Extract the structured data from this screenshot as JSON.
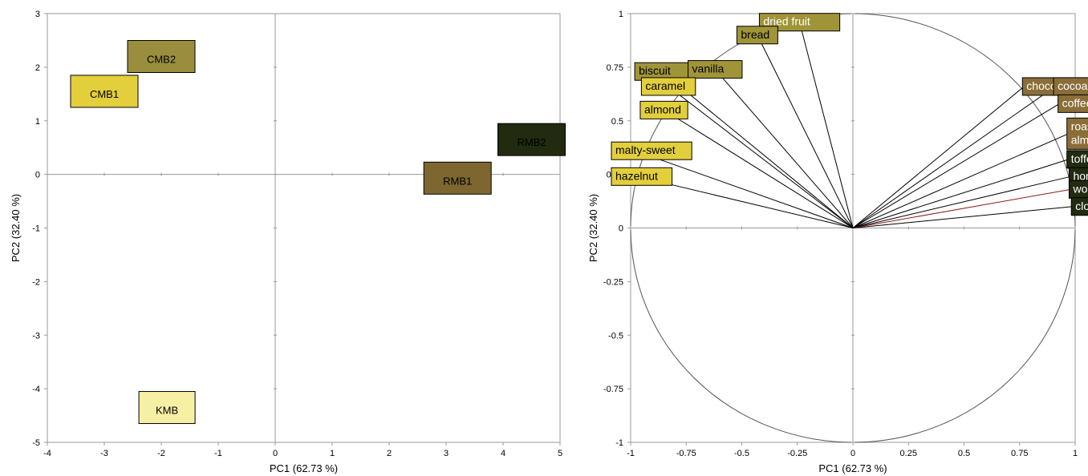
{
  "chart_data": [
    {
      "type": "scatter",
      "xlabel": "PC1 (62.73 %)",
      "ylabel": "PC2 (32.40 %)",
      "xlim": [
        -4,
        5
      ],
      "ylim": [
        -5,
        3
      ],
      "xticks": [
        "-4",
        "-3",
        "-2",
        "-1",
        "0",
        "1",
        "2",
        "3",
        "4",
        "5"
      ],
      "yticks": [
        "-5",
        "-4",
        "-3",
        "-2",
        "-1",
        "0",
        "1",
        "2",
        "3"
      ],
      "grid": false,
      "points": [
        {
          "label": "CMB2",
          "x": -2.0,
          "y": 2.2,
          "color": "#9a8e3e",
          "text_color": "#000000"
        },
        {
          "label": "CMB1",
          "x": -3.0,
          "y": 1.55,
          "color": "#e3cf3c",
          "text_color": "#000000"
        },
        {
          "label": "RMB2",
          "x": 4.5,
          "y": 0.65,
          "color": "#222a10",
          "text_color": "#ffffff"
        },
        {
          "label": "RMB1",
          "x": 3.2,
          "y": -0.07,
          "color": "#7d6630",
          "text_color": "#ffffff"
        },
        {
          "label": "KMB",
          "x": -1.9,
          "y": -4.35,
          "color": "#f6f0a4",
          "text_color": "#000000"
        }
      ]
    },
    {
      "type": "scatter",
      "subtype": "correlation-circle",
      "xlabel": "PC1 (62.73 %)",
      "ylabel": "PC2 (32.40 %)",
      "xlim": [
        -1,
        1
      ],
      "ylim": [
        -1,
        1
      ],
      "xticks": [
        "-1",
        "-0.75",
        "-0.5",
        "-0.25",
        "0",
        "0.25",
        "0.5",
        "0.75",
        "1"
      ],
      "yticks": [
        "-1",
        "-0.75",
        "-0.5",
        "-0.25",
        "0",
        "0.25",
        "0.5",
        "0.75",
        "1"
      ],
      "grid": false,
      "variables": [
        {
          "label": "dried fruit",
          "x": -0.24,
          "y": 0.96,
          "color": "#a09438",
          "text_color": "#ffffff"
        },
        {
          "label": "bread",
          "x": -0.43,
          "y": 0.9,
          "color": "#a09438",
          "text_color": "#000000"
        },
        {
          "label": "biscuit",
          "x": -0.86,
          "y": 0.73,
          "color": "#a09438",
          "text_color": "#000000"
        },
        {
          "label": "vanilla",
          "x": -0.62,
          "y": 0.74,
          "color": "#a09438",
          "text_color": "#000000"
        },
        {
          "label": "caramel",
          "x": -0.83,
          "y": 0.66,
          "color": "#e3cf3c",
          "text_color": "#000000"
        },
        {
          "label": "almond",
          "x": -0.85,
          "y": 0.55,
          "color": "#e3cf3c",
          "text_color": "#000000"
        },
        {
          "label": "malty-sweet",
          "x": -0.98,
          "y": 0.36,
          "color": "#e3cf3c",
          "text_color": "#000000"
        },
        {
          "label": "hazelnut",
          "x": -0.97,
          "y": 0.24,
          "color": "#e3cf3c",
          "text_color": "#000000"
        },
        {
          "label": "chocolate",
          "x": 0.77,
          "y": 0.66,
          "color": "#8a6e38",
          "text_color": "#ffffff"
        },
        {
          "label": "cocoa",
          "x": 0.91,
          "y": 0.66,
          "color": "#8a6e38",
          "text_color": "#ffffff"
        },
        {
          "label": "coffee",
          "x": 0.93,
          "y": 0.58,
          "color": "#8a6e38",
          "text_color": "#ffffff"
        },
        {
          "label": "roasted\nalmond",
          "x": 0.97,
          "y": 0.44,
          "color": "#8a6e38",
          "text_color": "#ffffff"
        },
        {
          "label": "toffee",
          "x": 0.97,
          "y": 0.32,
          "color": "#222a10",
          "text_color": "#ffffff"
        },
        {
          "label": "honey",
          "x": 0.98,
          "y": 0.24,
          "color": "#222a10",
          "text_color": "#ffffff"
        },
        {
          "label": "wood smoke",
          "x": 0.98,
          "y": 0.18,
          "color": "#222a10",
          "text_color": "#ffffff",
          "line_color": "#8b1a1a"
        },
        {
          "label": "clove",
          "x": 0.99,
          "y": 0.1,
          "color": "#222a10",
          "text_color": "#ffffff"
        }
      ]
    }
  ]
}
